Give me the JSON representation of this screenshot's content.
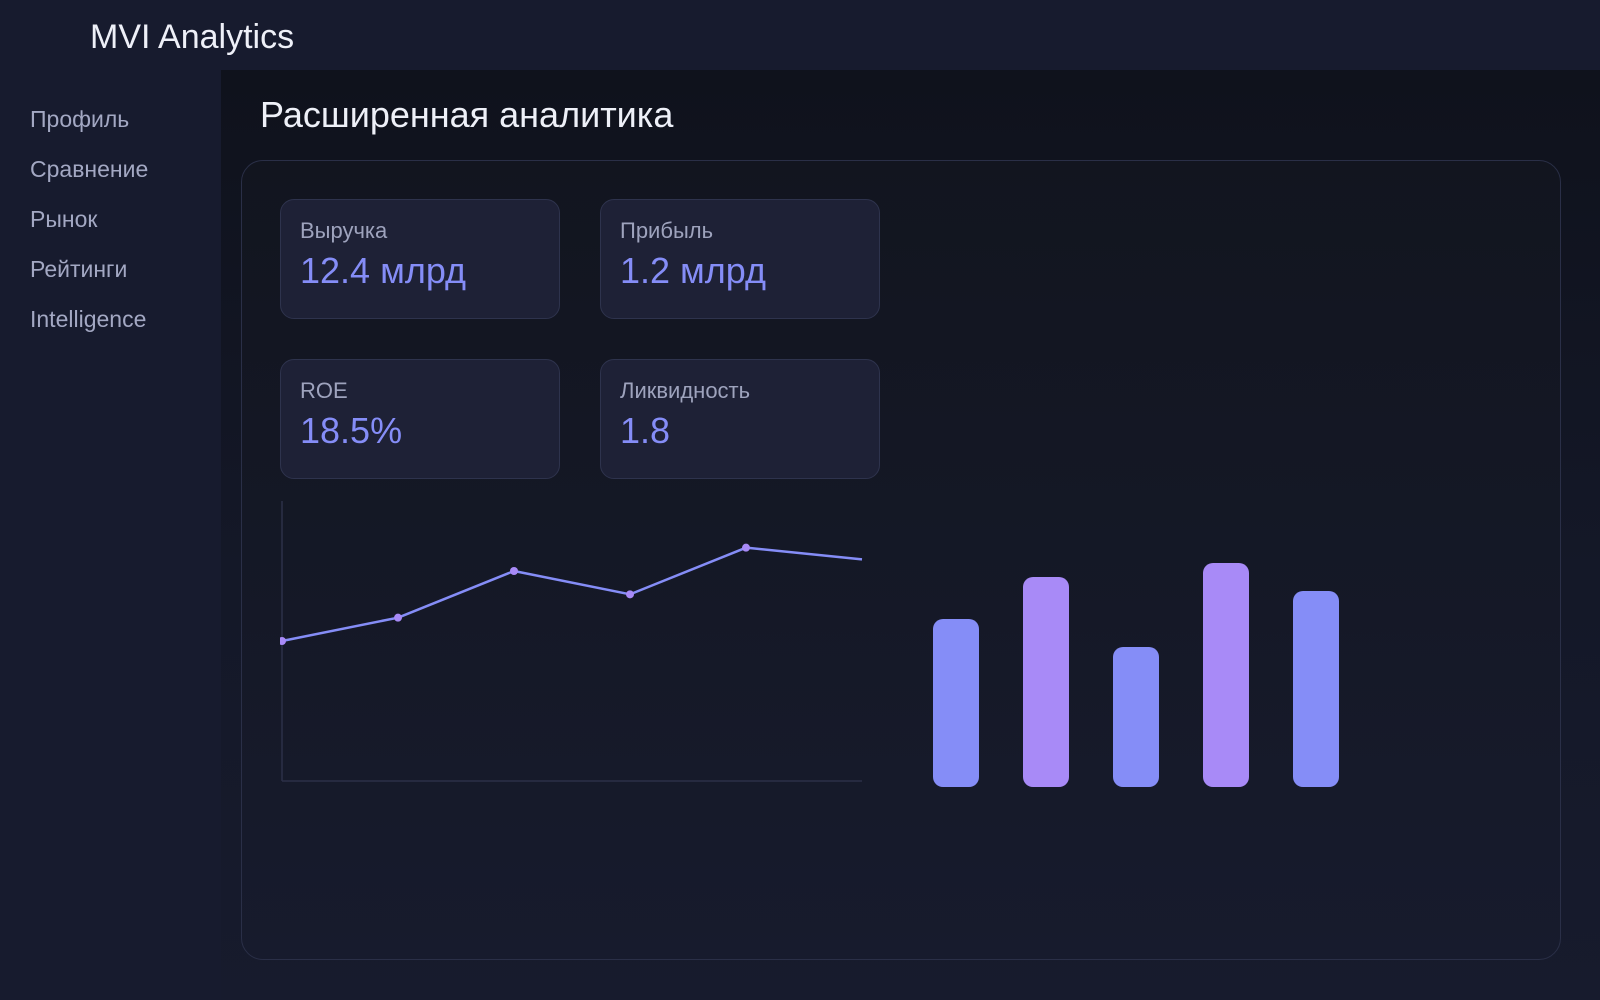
{
  "app": {
    "title": "MVI Analytics"
  },
  "sidebar": {
    "items": [
      {
        "label": "Профиль"
      },
      {
        "label": "Сравнение"
      },
      {
        "label": "Рынок"
      },
      {
        "label": "Рейтинги"
      },
      {
        "label": "Intelligence"
      }
    ]
  },
  "main": {
    "title": "Расширенная аналитика",
    "metrics": [
      {
        "label": "Выручка",
        "value": "12.4 млрд"
      },
      {
        "label": "Прибыль",
        "value": "1.2 млрд"
      },
      {
        "label": "ROE",
        "value": "18.5%"
      },
      {
        "label": "Ликвидность",
        "value": "1.8"
      }
    ]
  },
  "colors": {
    "accent": "#858df7",
    "accent_secondary": "#a88af7",
    "background": "#151a2b"
  },
  "chart_data": [
    {
      "type": "line",
      "title": "",
      "xlabel": "",
      "ylabel": "",
      "x": [
        1,
        2,
        3,
        4,
        5,
        6
      ],
      "series": [
        {
          "values": [
            40,
            50,
            70,
            60,
            80,
            75
          ]
        }
      ],
      "ylim": [
        -20,
        100
      ],
      "grid": false,
      "color": "#858df7",
      "marker_color": "#a88af7"
    },
    {
      "type": "bar",
      "title": "",
      "categories": [
        "",
        "",
        "",
        "",
        ""
      ],
      "values": [
        60,
        75,
        50,
        80,
        70
      ],
      "ylim": [
        0,
        100
      ],
      "colors": [
        "#858df7",
        "#a88af7",
        "#858df7",
        "#a88af7",
        "#858df7"
      ]
    }
  ]
}
